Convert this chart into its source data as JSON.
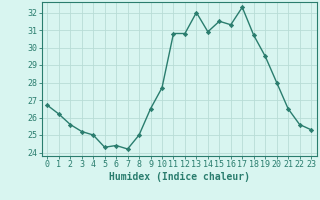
{
  "x": [
    0,
    1,
    2,
    3,
    4,
    5,
    6,
    7,
    8,
    9,
    10,
    11,
    12,
    13,
    14,
    15,
    16,
    17,
    18,
    19,
    20,
    21,
    22,
    23
  ],
  "y": [
    26.7,
    26.2,
    25.6,
    25.2,
    25.0,
    24.3,
    24.4,
    24.2,
    25.0,
    26.5,
    27.7,
    30.8,
    30.8,
    32.0,
    30.9,
    31.5,
    31.3,
    32.3,
    30.7,
    29.5,
    28.0,
    26.5,
    25.6,
    25.3
  ],
  "line_color": "#2a7d6e",
  "marker": "D",
  "marker_size": 2.2,
  "bg_color": "#d8f5f0",
  "grid_color": "#b8ddd6",
  "xlabel": "Humidex (Indice chaleur)",
  "ylim": [
    23.8,
    32.6
  ],
  "xlim": [
    -0.5,
    23.5
  ],
  "yticks": [
    24,
    25,
    26,
    27,
    28,
    29,
    30,
    31,
    32
  ],
  "xticks": [
    0,
    1,
    2,
    3,
    4,
    5,
    6,
    7,
    8,
    9,
    10,
    11,
    12,
    13,
    14,
    15,
    16,
    17,
    18,
    19,
    20,
    21,
    22,
    23
  ],
  "xlabel_fontsize": 7,
  "tick_fontsize": 6,
  "line_width": 1.0
}
